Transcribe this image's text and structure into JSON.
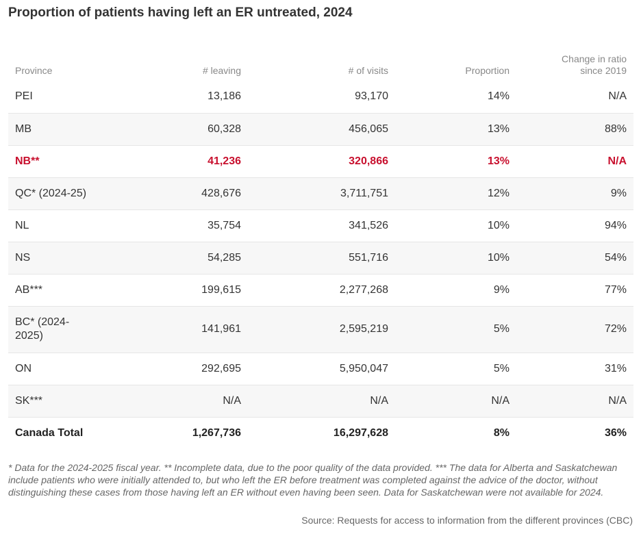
{
  "title": "Proportion of patients having left an ER untreated, 2024",
  "chart_data": {
    "type": "table",
    "title": "Proportion of patients having left an ER untreated, 2024",
    "columns": [
      "Province",
      "# leaving",
      "# of visits",
      "Proportion",
      "Change in ratio since 2019"
    ],
    "rows": [
      {
        "province": "PEI",
        "leaving": "13,186",
        "visits": "93,170",
        "proportion": "14%",
        "change": "N/A",
        "highlight": false
      },
      {
        "province": "MB",
        "leaving": "60,328",
        "visits": "456,065",
        "proportion": "13%",
        "change": "88%",
        "highlight": false
      },
      {
        "province": "NB**",
        "leaving": "41,236",
        "visits": "320,866",
        "proportion": "13%",
        "change": "N/A",
        "highlight": true
      },
      {
        "province": "QC* (2024-25)",
        "leaving": "428,676",
        "visits": "3,711,751",
        "proportion": "12%",
        "change": "9%",
        "highlight": false
      },
      {
        "province": "NL",
        "leaving": "35,754",
        "visits": "341,526",
        "proportion": "10%",
        "change": "94%",
        "highlight": false
      },
      {
        "province": "NS",
        "leaving": "54,285",
        "visits": "551,716",
        "proportion": "10%",
        "change": "54%",
        "highlight": false
      },
      {
        "province": "AB***",
        "leaving": "199,615",
        "visits": "2,277,268",
        "proportion": "9%",
        "change": "77%",
        "highlight": false
      },
      {
        "province": "BC* (2024-2025)",
        "leaving": "141,961",
        "visits": "2,595,219",
        "proportion": "5%",
        "change": "72%",
        "highlight": false
      },
      {
        "province": "ON",
        "leaving": "292,695",
        "visits": "5,950,047",
        "proportion": "5%",
        "change": "31%",
        "highlight": false
      },
      {
        "province": "SK***",
        "leaving": "N/A",
        "visits": "N/A",
        "proportion": "N/A",
        "change": "N/A",
        "highlight": false
      }
    ],
    "total": {
      "province": "Canada Total",
      "leaving": "1,267,736",
      "visits": "16,297,628",
      "proportion": "8%",
      "change": "36%"
    }
  },
  "notes": "* Data for the 2024-2025 fiscal year. ** Incomplete data, due to the poor quality of the data provided. *** The data for Alberta and Saskatchewan include patients who were initially attended to, but who left the ER before treatment was completed against the advice of the doctor, without distinguishing these cases from those having left an ER without even having been seen. Data for Saskatchewan were not available for 2024.",
  "source": "Source: Requests for access to information from the different provinces (CBC)",
  "colors": {
    "highlight": "#c8102e",
    "stripe": "#f7f7f7",
    "header_text": "#888888"
  }
}
